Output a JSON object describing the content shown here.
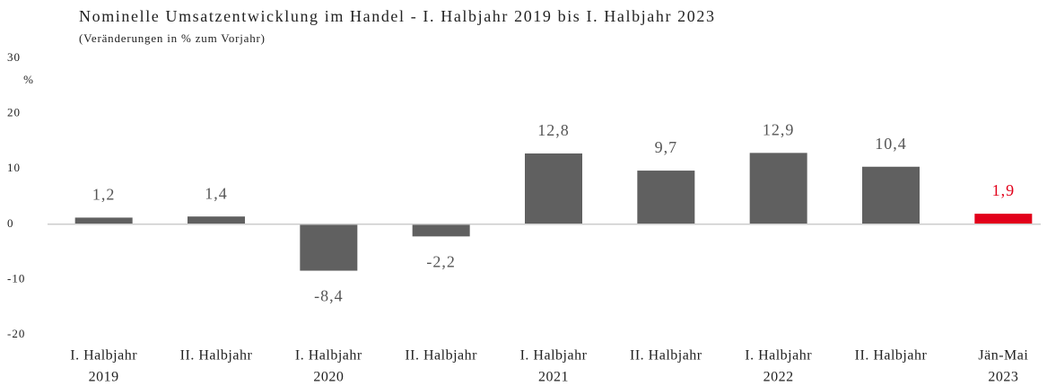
{
  "chart_data": {
    "type": "bar",
    "title": "Nominelle Umsatzentwicklung im Handel - I. Halbjahr 2019 bis I. Halbjahr 2023",
    "subtitle": "(Veränderungen in % zum Vorjahr)",
    "y_axis_label": "%",
    "categories": [
      [
        "I. Halbjahr",
        "2019"
      ],
      [
        "II. Halbjahr"
      ],
      [
        "I. Halbjahr",
        "2020"
      ],
      [
        "II. Halbjahr"
      ],
      [
        "I. Halbjahr",
        "2021"
      ],
      [
        "II. Halbjahr"
      ],
      [
        "I. Halbjahr",
        "2022"
      ],
      [
        "II. Halbjahr"
      ],
      [
        "Jän-Mai",
        "2023"
      ]
    ],
    "values": [
      1.2,
      1.4,
      -8.4,
      -2.2,
      12.8,
      9.7,
      12.9,
      10.4,
      1.9
    ],
    "value_labels": [
      "1,2",
      "1,4",
      "-8,4",
      "-2,2",
      "12,8",
      "9,7",
      "12,9",
      "10,4",
      "1,9"
    ],
    "colors": [
      "#606060",
      "#606060",
      "#606060",
      "#606060",
      "#606060",
      "#606060",
      "#606060",
      "#606060",
      "#e2001a"
    ],
    "ylim": [
      -20,
      30
    ],
    "yticks": [
      -20,
      -10,
      0,
      10,
      20,
      30
    ],
    "grid": false
  }
}
